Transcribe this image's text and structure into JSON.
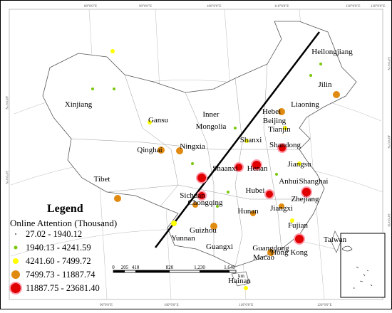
{
  "map": {
    "provinces": [
      "Heilongjiang",
      "Jilin",
      "Liaoning",
      "Xinjiang",
      "Gansu",
      [
        "Inner",
        "Mongolia"
      ],
      "Hebei",
      "Beijing",
      "Tianjin",
      "Shanxi",
      "Shandong",
      "Ningxia",
      "Qinghai",
      "Shaanxi",
      "Henan",
      "Jiangsu",
      "Tibet",
      "Anhui",
      "Shanghai",
      "Hubei",
      "Sichuan",
      "Chongqing",
      "Zhejiang",
      "Jiangxi",
      "Hunan",
      "Guizhou",
      "Fujian",
      "Yunnan",
      "Taiwan",
      "Guangxi",
      "Guangdong",
      "Hong Kong",
      "Macao",
      "Hainan"
    ],
    "legend": {
      "title": "Legend",
      "subtitle": "Online Attention (Thousand)",
      "classes": [
        "27.02 - 1940.12",
        "1940.13 - 4241.59",
        "4241.60 - 7499.72",
        "7499.73 - 11887.74",
        "11887.75 - 23681.40"
      ]
    },
    "scale": {
      "ticks": [
        "0",
        "205",
        "410",
        "820",
        "1,230",
        "1,640"
      ],
      "unit": "km"
    },
    "graticule": {
      "top": [
        "80°0'0\"E",
        "90°0'0\"E",
        "100°0'0\"E",
        "110°0'0\"E",
        "120°0'0\"E",
        "130°0'0\"E"
      ],
      "bottom": [
        "90°0'0\"E",
        "100°0'0\"E",
        "110°0'0\"E",
        "120°0'0\"E"
      ],
      "side": [
        "40°0'0\"N",
        "30°0'0\"N",
        "50°0'0\"N",
        "40°0'0\"N",
        "30°0'0\"N"
      ]
    }
  }
}
